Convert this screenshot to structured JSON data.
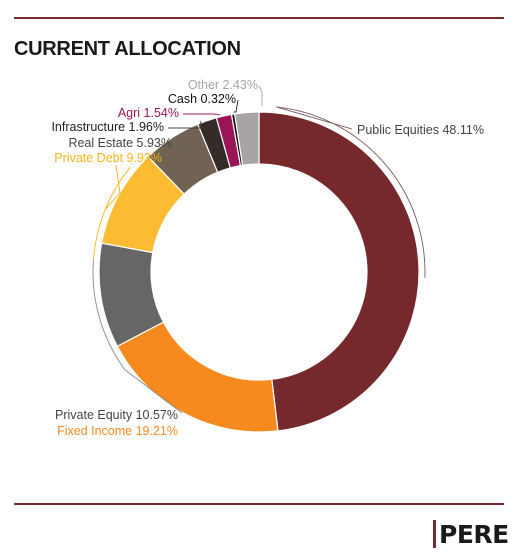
{
  "header": {
    "title": "CURRENT ALLOCATION"
  },
  "logo": {
    "text": "PERE"
  },
  "chart_data": {
    "type": "pie",
    "donut": true,
    "title": "CURRENT ALLOCATION",
    "unit": "%",
    "slices": [
      {
        "name": "Public Equities",
        "value": 48.11,
        "label": "Public Equities 48.11%",
        "color": "#76292d",
        "label_color": "#444444"
      },
      {
        "name": "Fixed Income",
        "value": 19.21,
        "label": "Fixed Income 19.21%",
        "color": "#f68a1f",
        "label_color": "#f68a1f"
      },
      {
        "name": "Private Equity",
        "value": 10.57,
        "label": "Private Equity 10.57%",
        "color": "#666666",
        "label_color": "#444444"
      },
      {
        "name": "Private Debt",
        "value": 9.93,
        "label": "Private Debt 9.93%",
        "color": "#fbbb32",
        "label_color": "#f5b418"
      },
      {
        "name": "Real Estate",
        "value": 5.93,
        "label": "Real Estate 5.93%",
        "color": "#716254",
        "label_color": "#444444"
      },
      {
        "name": "Infrastructure",
        "value": 1.96,
        "label": "Infrastructure 1.96%",
        "color": "#352c2a",
        "label_color": "#222222"
      },
      {
        "name": "Agri",
        "value": 1.54,
        "label": "Agri 1.54%",
        "color": "#9c1458",
        "label_color": "#9c1458"
      },
      {
        "name": "Cash",
        "value": 0.32,
        "label": "Cash 0.32%",
        "color": "#111111",
        "label_color": "#111111"
      },
      {
        "name": "Other",
        "value": 2.43,
        "label": "Other 2.43%",
        "color": "#a8a4a4",
        "label_color": "#a8a4a4"
      }
    ]
  }
}
